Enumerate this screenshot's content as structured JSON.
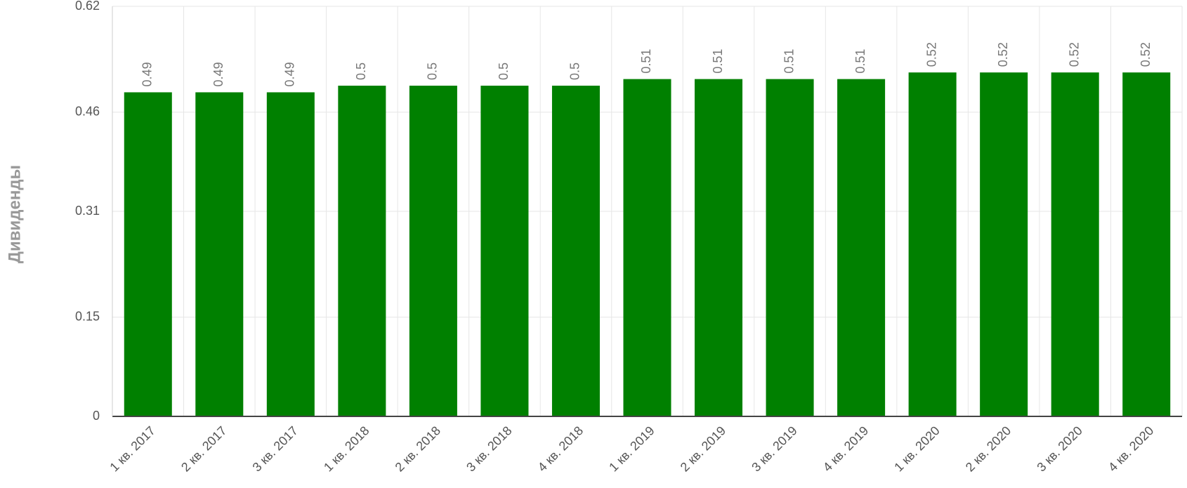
{
  "chart_data": {
    "type": "bar",
    "y_label": "Дивиденды",
    "categories": [
      "1 кв. 2017",
      "2 кв. 2017",
      "3 кв. 2017",
      "1 кв. 2018",
      "2 кв. 2018",
      "3 кв. 2018",
      "4 кв. 2018",
      "1 кв. 2019",
      "2 кв. 2019",
      "3 кв. 2019",
      "4 кв. 2019",
      "1 кв. 2020",
      "2 кв. 2020",
      "3 кв. 2020",
      "4 кв. 2020"
    ],
    "values": [
      0.49,
      0.49,
      0.49,
      0.5,
      0.5,
      0.5,
      0.5,
      0.51,
      0.51,
      0.51,
      0.51,
      0.52,
      0.52,
      0.52,
      0.52
    ],
    "color": "#008000",
    "ylim": [
      0,
      0.62
    ],
    "yticks": [
      0,
      0.15,
      0.31,
      0.46,
      0.62
    ],
    "grid": true
  }
}
